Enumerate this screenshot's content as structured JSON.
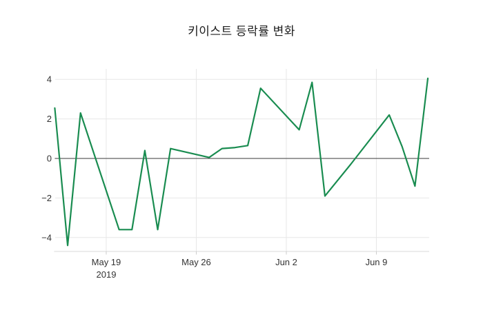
{
  "chart_data": {
    "type": "line",
    "title": "키이스트 등락률 변화",
    "xlabel": "",
    "ylabel": "",
    "x": [
      "2019-05-15",
      "2019-05-16",
      "2019-05-17",
      "2019-05-20",
      "2019-05-21",
      "2019-05-22",
      "2019-05-23",
      "2019-05-24",
      "2019-05-27",
      "2019-05-28",
      "2019-05-29",
      "2019-05-30",
      "2019-05-31",
      "2019-06-03",
      "2019-06-04",
      "2019-06-05",
      "2019-06-07",
      "2019-06-10",
      "2019-06-11",
      "2019-06-12",
      "2019-06-13"
    ],
    "y": [
      2.55,
      -4.4,
      2.3,
      -3.6,
      -3.6,
      0.4,
      -3.6,
      0.5,
      0.05,
      0.5,
      0.55,
      0.65,
      3.55,
      1.45,
      3.85,
      -1.9,
      -0.3,
      2.2,
      0.6,
      -1.4,
      4.05
    ],
    "ylim": [
      -4.7,
      4.55
    ],
    "xlim": [
      "2019-05-15",
      "2019-06-13"
    ],
    "grid": true,
    "legend": false,
    "zero_line": true,
    "x_ticks": [
      {
        "date": "2019-05-19",
        "label": "May 19",
        "sublabel": "2019"
      },
      {
        "date": "2019-05-26",
        "label": "May 26",
        "sublabel": ""
      },
      {
        "date": "2019-06-02",
        "label": "Jun 2",
        "sublabel": ""
      },
      {
        "date": "2019-06-09",
        "label": "Jun 9",
        "sublabel": ""
      }
    ],
    "y_ticks": [
      4,
      2,
      0,
      -2,
      -4
    ],
    "y_tick_labels": [
      "4",
      "2",
      "0",
      "−2",
      "−4"
    ],
    "colors": {
      "line": "#198c50",
      "grid": "#e7e7e7",
      "zero_line": "#3a3a3a",
      "axis_line": "#d9d9d9",
      "tick": "#cccccc",
      "tick_label": "#333333",
      "title": "#1c1c1c",
      "background": "#ffffff"
    }
  }
}
